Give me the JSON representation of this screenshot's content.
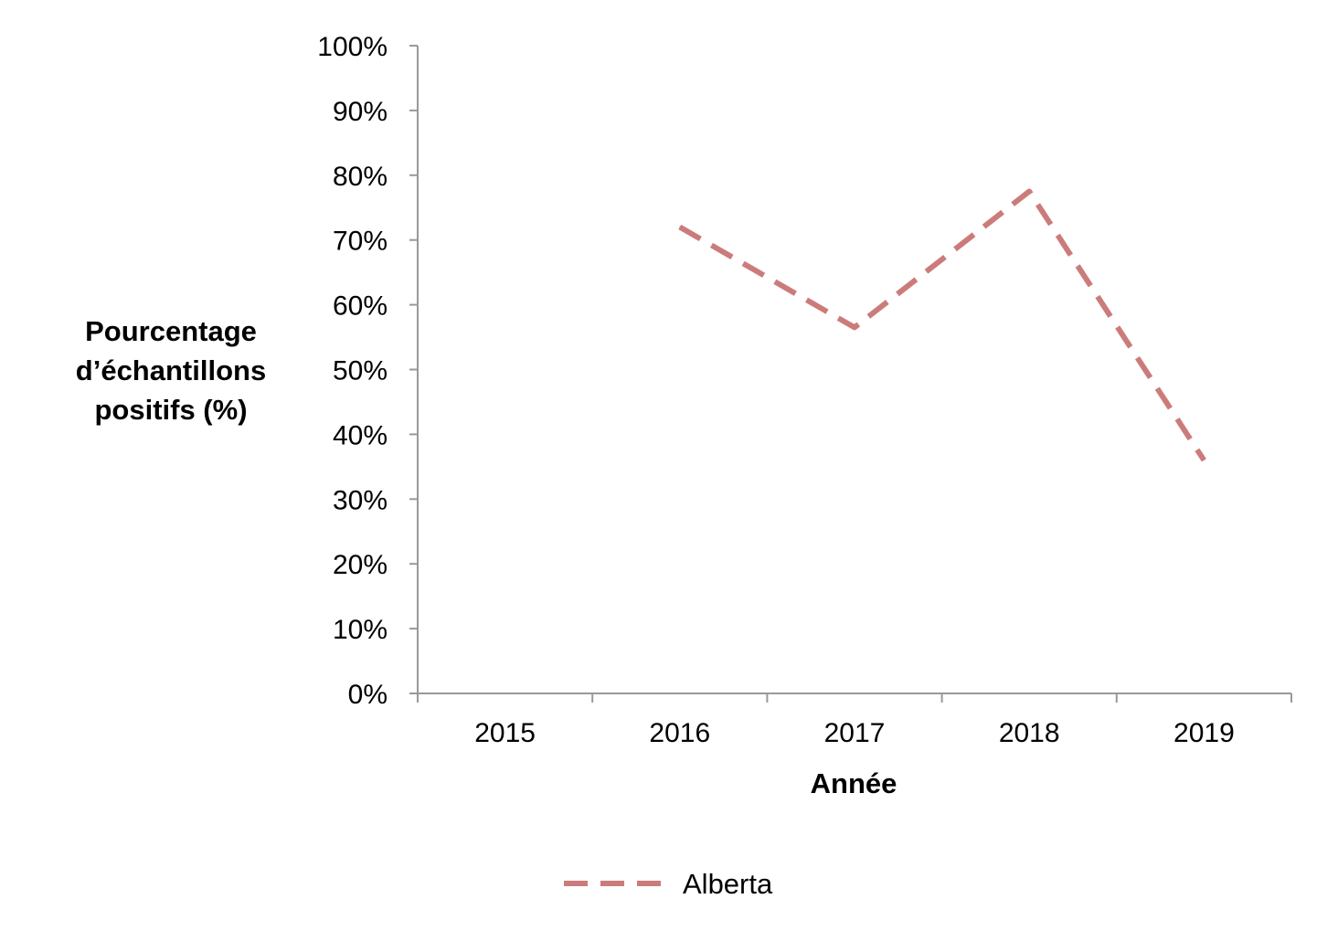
{
  "chart_data": {
    "type": "line",
    "categories": [
      "2015",
      "2016",
      "2017",
      "2018",
      "2019"
    ],
    "series": [
      {
        "name": "Alberta",
        "values": [
          null,
          72,
          56.5,
          77.5,
          36
        ],
        "color": "#cc7b7b",
        "line_style": "dashed"
      }
    ],
    "ylabel_lines": [
      "Pourcentage",
      "d’échantillons",
      "positifs (%)"
    ],
    "xlabel": "Année",
    "ylim": [
      0,
      100
    ],
    "yticks": [
      0,
      10,
      20,
      30,
      40,
      50,
      60,
      70,
      80,
      90,
      100
    ],
    "ytick_suffix": "%",
    "grid": false,
    "legend_position": "bottom-center",
    "axis_color": "#999999"
  }
}
